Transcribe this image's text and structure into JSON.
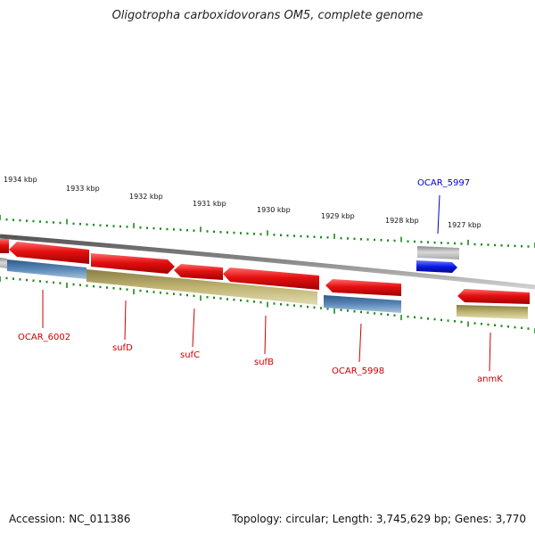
{
  "header": {
    "title": "Oligotropha carboxidovorans OM5, complete genome"
  },
  "footer": {
    "accession": "Accession: NC_011386",
    "summary": "Topology: circular; Length: 3,745,629 bp; Genes: 3,770"
  },
  "colors": {
    "backbone": "#7a7a7a",
    "cds_forward": "#e41010",
    "cds_reverse": "#0a18e8",
    "gene_gray": "#b8b8b8",
    "feature_blue": "#4a78a8",
    "feature_khaki": "#b9ae6e",
    "ticks": "#1a8a1a",
    "label_red": "#cc0000",
    "label_blue": "#0000cc"
  },
  "scale_labels": [
    "1934 kbp",
    "1933 kbp",
    "1932 kbp",
    "1931 kbp",
    "1930 kbp",
    "1929 kbp",
    "1928 kbp",
    "1927 kbp"
  ],
  "gene_labels": [
    {
      "text": "OCAR_5997",
      "color": "blue"
    },
    {
      "text": "OCAR_6002",
      "color": "red"
    },
    {
      "text": "sufD",
      "color": "red"
    },
    {
      "text": "sufC",
      "color": "red"
    },
    {
      "text": "sufB",
      "color": "red"
    },
    {
      "text": "OCAR_5998",
      "color": "red"
    },
    {
      "text": "anmK",
      "color": "red"
    }
  ]
}
